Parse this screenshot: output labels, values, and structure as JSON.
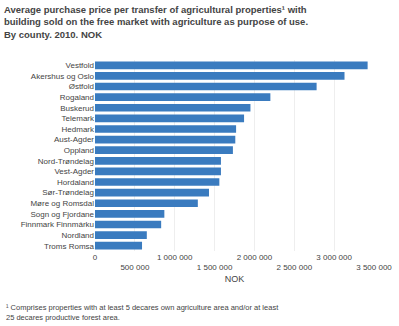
{
  "chart_data": {
    "type": "bar",
    "orientation": "horizontal",
    "title": "Average purchase price per transfer of agricultural properties¹ with\nbuilding sold on the free market with agriculture as purpose of use.\nBy county. 2010. NOK",
    "categories": [
      "Vestfold",
      "Akershus og Oslo",
      "Østfold",
      "Rogaland",
      "Buskerud",
      "Telemark",
      "Hedmark",
      "Aust-Agder",
      "Oppland",
      "Nord-Trøndelag",
      "Vest-Agder",
      "Hordaland",
      "Sør-Trøndelag",
      "Møre og Romsdal",
      "Sogn og Fjordane",
      "Finnmark Finnmárku",
      "Nordland",
      "Troms Romsa"
    ],
    "values": [
      3420000,
      3130000,
      2780000,
      2200000,
      1950000,
      1870000,
      1770000,
      1760000,
      1730000,
      1580000,
      1580000,
      1560000,
      1430000,
      1290000,
      870000,
      830000,
      650000,
      590000
    ],
    "color": "#3a7bbf",
    "xlabel": "NOK",
    "xlim": [
      0,
      3500000
    ],
    "xticks": [
      0,
      {
        "value": 500000,
        "label": "500 000"
      },
      {
        "value": 1000000,
        "label": "1 000 000"
      },
      {
        "value": 1500000,
        "label": "1 500 000"
      },
      {
        "value": 2000000,
        "label": "2 000 000"
      },
      {
        "value": 2500000,
        "label": "2 500 000"
      },
      {
        "value": 3000000,
        "label": "3 000 000"
      },
      {
        "value": 3500000,
        "label": "3 500 000"
      }
    ],
    "grid": true,
    "annotations": [
      "¹ Comprises properties with at least 5 decares own agriculture area and/or at least\n25 decares productive forest area."
    ]
  }
}
